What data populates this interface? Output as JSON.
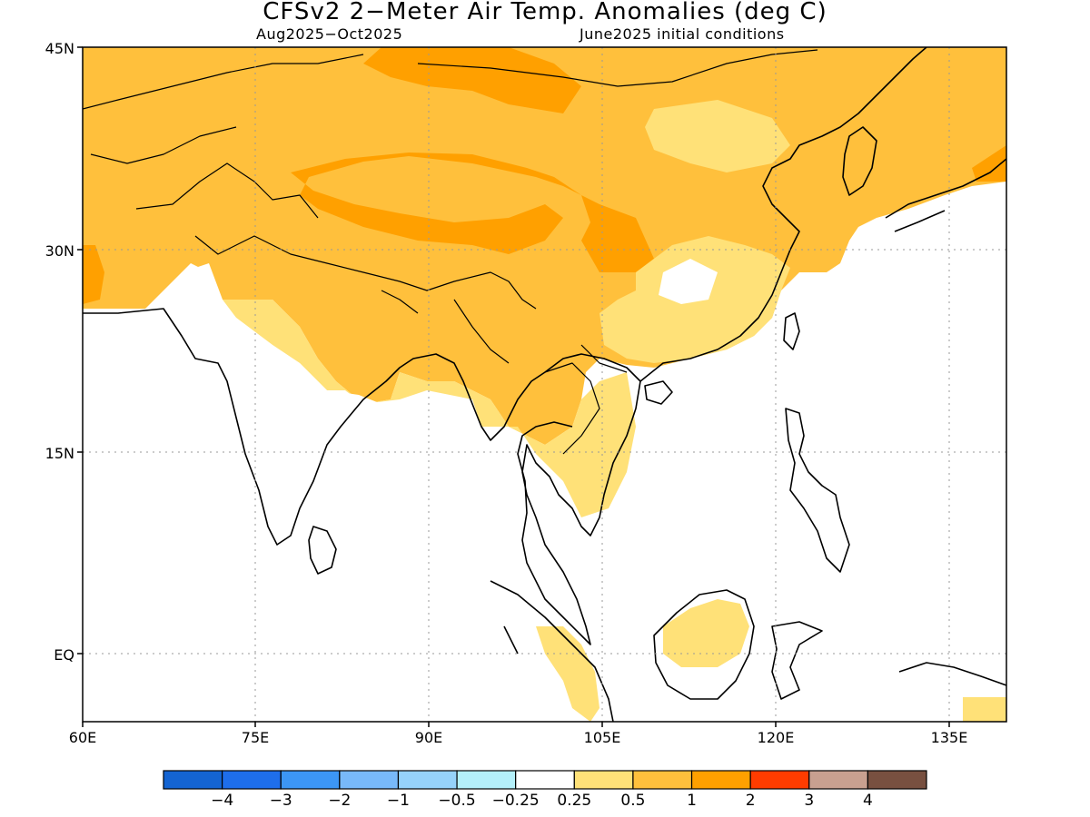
{
  "header": {
    "title": "CFSv2 2−Meter Air Temp. Anomalies (deg C)",
    "period": "Aug2025−Oct2025",
    "initial_conditions": "June2025 initial conditions"
  },
  "axes": {
    "lat_labels": [
      "45N",
      "30N",
      "15N",
      "EQ"
    ],
    "lon_labels": [
      "60E",
      "75E",
      "90E",
      "105E",
      "120E",
      "135E"
    ],
    "lat_values": [
      45,
      30,
      15,
      0
    ],
    "lon_values": [
      60,
      75,
      90,
      105,
      120,
      135
    ],
    "lon_range": [
      60,
      140
    ],
    "lat_range": [
      -5,
      45
    ],
    "grid": "dotted"
  },
  "colorbar": {
    "colors": [
      "#1464d2",
      "#1e6eeb",
      "#3c96f5",
      "#78b9fa",
      "#96d2fa",
      "#b4f0fa",
      "#ffffff",
      "#ffe178",
      "#ffc03c",
      "#ffa000",
      "#ff3c00",
      "#c8a090",
      "#785040"
    ],
    "tick_labels": [
      "−4",
      "−3",
      "−2",
      "−1",
      "−0.5",
      "−0.25",
      "0.25",
      "0.5",
      "1",
      "2",
      "3",
      "4"
    ]
  },
  "anomaly_fill": {
    "weak": "#ffe178",
    "moderate": "#ffc03c",
    "strong": "#ffa000"
  }
}
